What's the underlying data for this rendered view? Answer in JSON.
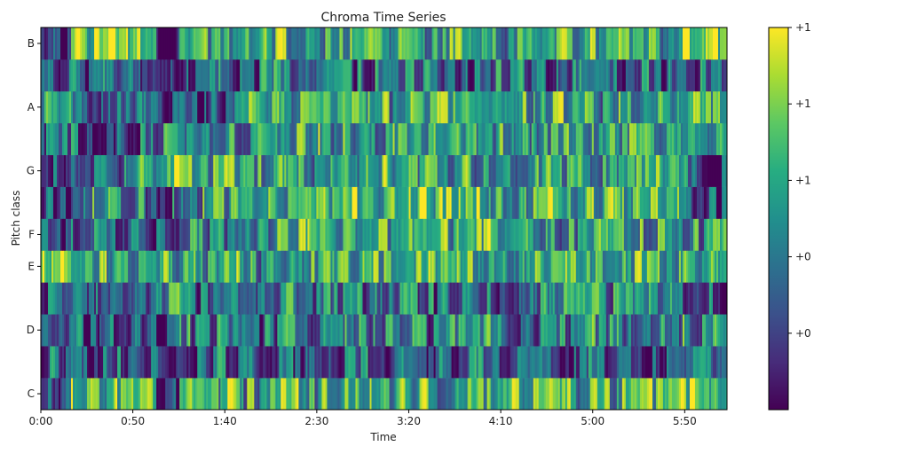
{
  "chart_data": {
    "type": "heatmap",
    "title": "Chroma Time Series",
    "xlabel": "Time",
    "ylabel": "Pitch class",
    "colormap": "viridis",
    "duration_seconds": 373,
    "x_tick_seconds": [
      0,
      50,
      100,
      150,
      200,
      250,
      300,
      350
    ],
    "x_tick_labels": [
      "0:00",
      "0:50",
      "1:40",
      "2:30",
      "3:20",
      "4:10",
      "5:00",
      "5:50"
    ],
    "rows": [
      "C",
      "C#",
      "D",
      "D#",
      "E",
      "F",
      "F#",
      "G",
      "G#",
      "A",
      "A#",
      "B"
    ],
    "y_tick_labels": [
      {
        "row": "C",
        "label": "C"
      },
      {
        "row": "D",
        "label": "D"
      },
      {
        "row": "E",
        "label": "E"
      },
      {
        "row": "F",
        "label": "F"
      },
      {
        "row": "G",
        "label": "G"
      },
      {
        "row": "A",
        "label": "A"
      },
      {
        "row": "B",
        "label": "B"
      }
    ],
    "colorbar": {
      "vmin": 0,
      "vmax": 1,
      "ticks": [
        {
          "value": 1.0,
          "label": "+1"
        },
        {
          "value": 0.8,
          "label": "+1"
        },
        {
          "value": 0.6,
          "label": "+1"
        },
        {
          "value": 0.4,
          "label": "+0"
        },
        {
          "value": 0.2,
          "label": "+0"
        }
      ]
    },
    "segments_seconds": [
      [
        0,
        16
      ],
      [
        16,
        63
      ],
      [
        63,
        75
      ],
      [
        75,
        107
      ],
      [
        107,
        120
      ],
      [
        120,
        140
      ],
      [
        140,
        174
      ],
      [
        174,
        212
      ],
      [
        212,
        251
      ],
      [
        251,
        292
      ],
      [
        292,
        347
      ],
      [
        347,
        373
      ]
    ],
    "segment_levels": {
      "C": [
        0.15,
        0.75,
        0.15,
        0.65,
        0.55,
        0.7,
        0.6,
        0.65,
        0.6,
        0.65,
        0.6,
        0.75
      ],
      "C#": [
        0.35,
        0.3,
        0.1,
        0.35,
        0.3,
        0.35,
        0.3,
        0.3,
        0.3,
        0.3,
        0.3,
        0.3
      ],
      "D": [
        0.2,
        0.3,
        0.15,
        0.45,
        0.3,
        0.4,
        0.45,
        0.4,
        0.45,
        0.4,
        0.5,
        0.5
      ],
      "D#": [
        0.25,
        0.3,
        0.55,
        0.3,
        0.3,
        0.4,
        0.4,
        0.4,
        0.35,
        0.4,
        0.45,
        0.35
      ],
      "E": [
        0.9,
        0.55,
        0.6,
        0.55,
        0.5,
        0.55,
        0.6,
        0.6,
        0.55,
        0.6,
        0.6,
        0.5
      ],
      "F": [
        0.3,
        0.3,
        0.2,
        0.45,
        0.55,
        0.55,
        0.6,
        0.6,
        0.6,
        0.55,
        0.55,
        0.45
      ],
      "F#": [
        0.15,
        0.45,
        0.35,
        0.5,
        0.45,
        0.6,
        0.65,
        0.7,
        0.65,
        0.6,
        0.65,
        0.25
      ],
      "G": [
        0.2,
        0.45,
        0.8,
        0.55,
        0.5,
        0.55,
        0.55,
        0.6,
        0.55,
        0.55,
        0.55,
        0.3
      ],
      "G#": [
        0.35,
        0.3,
        0.45,
        0.4,
        0.45,
        0.6,
        0.6,
        0.55,
        0.55,
        0.55,
        0.55,
        0.5
      ],
      "A": [
        0.55,
        0.35,
        0.3,
        0.3,
        0.75,
        0.6,
        0.65,
        0.6,
        0.65,
        0.6,
        0.55,
        0.6
      ],
      "A#": [
        0.3,
        0.35,
        0.3,
        0.35,
        0.3,
        0.35,
        0.35,
        0.35,
        0.35,
        0.35,
        0.35,
        0.35
      ],
      "B": [
        0.1,
        0.8,
        0.15,
        0.6,
        0.55,
        0.65,
        0.6,
        0.55,
        0.6,
        0.55,
        0.6,
        0.8
      ]
    }
  }
}
